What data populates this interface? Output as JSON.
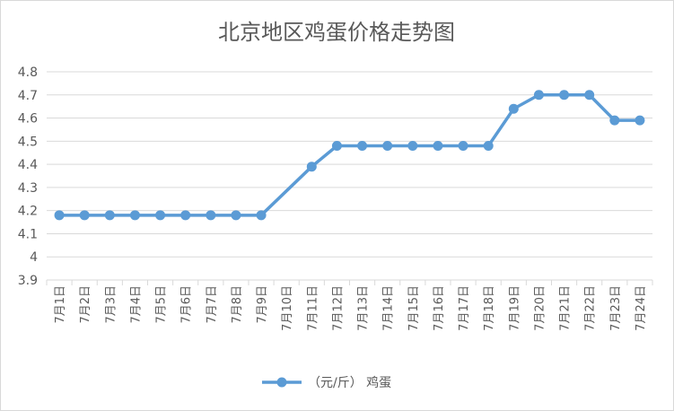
{
  "chart_data": {
    "type": "line",
    "title": "北京地区鸡蛋价格走势图",
    "xlabel": "",
    "ylabel": "",
    "categories": [
      "7月1日",
      "7月2日",
      "7月3日",
      "7月4日",
      "7月5日",
      "7月6日",
      "7月7日",
      "7月8日",
      "7月9日",
      "7月10日",
      "7月11日",
      "7月12日",
      "7月13日",
      "7月14日",
      "7月15日",
      "7月16日",
      "7月17日",
      "7月18日",
      "7月19日",
      "7月20日",
      "7月21日",
      "7月22日",
      "7月23日",
      "7月24日"
    ],
    "series": [
      {
        "name": "（元/斤） 鸡蛋",
        "values": [
          4.18,
          4.18,
          4.18,
          4.18,
          4.18,
          4.18,
          4.18,
          4.18,
          4.18,
          null,
          4.39,
          4.48,
          4.48,
          4.48,
          4.48,
          4.48,
          4.48,
          4.48,
          4.64,
          4.7,
          4.7,
          4.7,
          4.59,
          4.59
        ],
        "color": "#5b9bd5"
      }
    ],
    "ylim": [
      3.9,
      4.8
    ],
    "yticks": [
      "4.8",
      "4.7",
      "4.6",
      "4.5",
      "4.4",
      "4.3",
      "4.2",
      "4.1",
      "4",
      "3.9"
    ],
    "grid": true,
    "legend": "bottom",
    "colors": {
      "line": "#5b9bd5",
      "grid": "#d9d9d9",
      "text": "#595959",
      "title": "#595959"
    }
  }
}
